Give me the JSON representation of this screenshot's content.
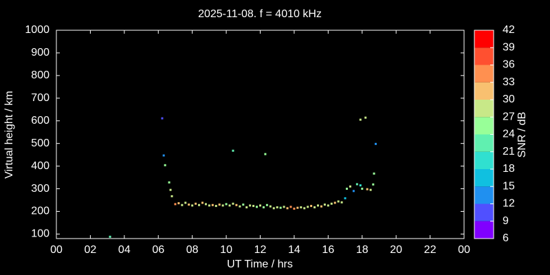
{
  "chart_data": {
    "type": "scatter",
    "title": "2025-11-08. f = 4010 kHz",
    "xlabel": "UT Time / hrs",
    "ylabel": "Virtual height / km",
    "xlim": [
      0,
      24
    ],
    "ylim": [
      80,
      1000
    ],
    "xticks": [
      {
        "value": 0,
        "label": "00"
      },
      {
        "value": 2,
        "label": "02"
      },
      {
        "value": 4,
        "label": "04"
      },
      {
        "value": 6,
        "label": "06"
      },
      {
        "value": 8,
        "label": "08"
      },
      10,
      12,
      14,
      16,
      18,
      20,
      22,
      {
        "value": 24,
        "label": "00"
      }
    ],
    "yticks": [
      100,
      200,
      300,
      400,
      500,
      600,
      700,
      800,
      900,
      1000
    ],
    "colorbar": {
      "label": "SNR / dB",
      "ticks": [
        6,
        9,
        12,
        15,
        18,
        21,
        24,
        27,
        30,
        33,
        36,
        39,
        42
      ],
      "colors": [
        "#8000ff",
        "#5050ff",
        "#2090f0",
        "#10c0e0",
        "#30e0d0",
        "#60f0b0",
        "#98ff98",
        "#c8e888",
        "#f8c070",
        "#ff9050",
        "#ff5030",
        "#ff0000"
      ]
    },
    "series": [
      {
        "x": [
          3.16,
          6.23,
          6.32,
          6.4,
          6.64,
          6.72,
          6.8,
          10.4,
          12.3,
          17.9,
          18.2,
          18.8,
          18.7,
          18.65,
          7.0,
          7.2,
          7.4,
          7.6,
          7.8,
          8.0,
          8.2,
          8.4,
          8.6,
          8.8,
          9.0,
          9.2,
          9.4,
          9.6,
          9.8,
          10.0,
          10.2,
          10.4,
          10.6,
          10.8,
          11.0,
          11.2,
          11.4,
          11.6,
          11.8,
          12.0,
          12.2,
          12.4,
          12.6,
          12.8,
          13.0,
          13.2,
          13.4,
          13.6,
          13.8,
          14.0,
          14.2,
          14.4,
          14.6,
          14.8,
          15.0,
          15.2,
          15.4,
          15.6,
          15.8,
          16.0,
          16.2,
          16.4,
          16.6,
          16.8,
          17.0,
          17.1,
          17.3,
          17.5,
          17.7,
          17.9,
          18.0,
          18.3,
          18.5
        ],
        "values": [
          88,
          611,
          447,
          404,
          328,
          295,
          267,
          468,
          453,
          605,
          614,
          498,
          367,
          319,
          232,
          236,
          228,
          238,
          230,
          226,
          234,
          228,
          238,
          232,
          226,
          228,
          224,
          230,
          226,
          232,
          226,
          234,
          228,
          222,
          230,
          218,
          226,
          224,
          220,
          226,
          218,
          228,
          222,
          214,
          218,
          216,
          220,
          214,
          220,
          212,
          216,
          218,
          214,
          220,
          224,
          218,
          226,
          222,
          230,
          226,
          234,
          238,
          244,
          240,
          258,
          300,
          310,
          290,
          320,
          315,
          300,
          298,
          295
        ],
        "snr": [
          21,
          9,
          12,
          24,
          24,
          27,
          27,
          21,
          24,
          27,
          27,
          12,
          24,
          24,
          33,
          30,
          27,
          27,
          30,
          27,
          30,
          27,
          30,
          27,
          27,
          30,
          27,
          30,
          27,
          24,
          27,
          27,
          30,
          27,
          24,
          27,
          27,
          27,
          24,
          27,
          24,
          24,
          27,
          27,
          27,
          24,
          27,
          30,
          33,
          33,
          30,
          27,
          27,
          27,
          30,
          27,
          27,
          30,
          27,
          27,
          27,
          30,
          27,
          27,
          15,
          24,
          27,
          12,
          21,
          18,
          24,
          30,
          27
        ]
      }
    ]
  }
}
